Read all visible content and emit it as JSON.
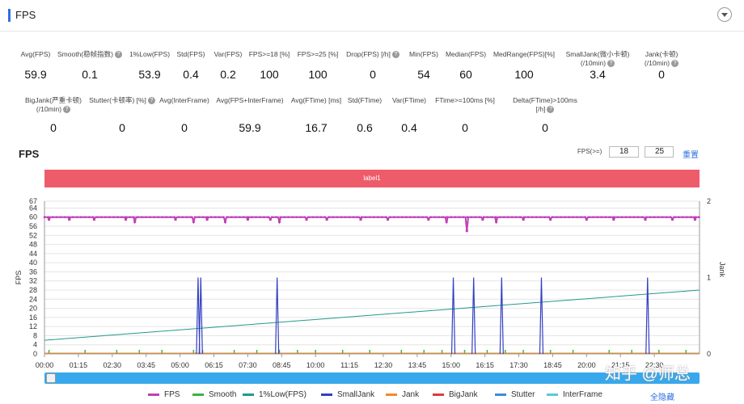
{
  "header": {
    "title": "FPS"
  },
  "stats_row1": [
    {
      "label": "Avg(FPS)",
      "value": "59.9",
      "help": false
    },
    {
      "label": "Smooth(稳帧指数)",
      "value": "0.1",
      "help": true
    },
    {
      "label": "1%Low(FPS)",
      "value": "53.9",
      "help": false
    },
    {
      "label": "Std(FPS)",
      "value": "0.4",
      "help": false
    },
    {
      "label": "Var(FPS)",
      "value": "0.2",
      "help": false
    },
    {
      "label": "FPS>=18 [%]",
      "value": "100",
      "help": false
    },
    {
      "label": "FPS>=25 [%]",
      "value": "100",
      "help": false
    },
    {
      "label": "Drop(FPS) [/h]",
      "value": "0",
      "help": true
    },
    {
      "label": "Min(FPS)",
      "value": "54",
      "help": false
    },
    {
      "label": "Median(FPS)",
      "value": "60",
      "help": false
    },
    {
      "label": "MedRange(FPS)[%]",
      "value": "100",
      "help": false
    },
    {
      "label": "SmallJank(微小卡顿)",
      "label2": "(/10min)",
      "value": "3.4",
      "help": true
    },
    {
      "label": "Jank(卡顿)",
      "label2": "(/10min)",
      "value": "0",
      "help": true
    }
  ],
  "stats_row2": [
    {
      "label": "BigJank(严重卡顿)",
      "label2": "(/10min)",
      "value": "0",
      "help": true
    },
    {
      "label": "Stutter(卡顿率) [%]",
      "value": "0",
      "help": true
    },
    {
      "label": "Avg(InterFrame)",
      "value": "0",
      "help": false
    },
    {
      "label": "Avg(FPS+InterFrame)",
      "value": "59.9",
      "help": false
    },
    {
      "label": "Avg(FTime) [ms]",
      "value": "16.7",
      "help": false
    },
    {
      "label": "Std(FTime)",
      "value": "0.6",
      "help": false
    },
    {
      "label": "Var(FTime)",
      "value": "0.4",
      "help": false
    },
    {
      "label": "FTime>=100ms [%]",
      "value": "0",
      "help": false
    },
    {
      "label": "Delta(FTime)>100ms [/h]",
      "value": "0",
      "help": true
    }
  ],
  "chart_header": {
    "title": "FPS",
    "threshold_label": "FPS(>=)",
    "threshold1": "18",
    "threshold2": "25",
    "reset_label": "重置"
  },
  "label_band": "label1",
  "legend": {
    "items": [
      {
        "name": "FPS",
        "color": "#c23fb7"
      },
      {
        "name": "Smooth",
        "color": "#3cb43c"
      },
      {
        "name": "1%Low(FPS)",
        "color": "#229a8c"
      },
      {
        "name": "SmallJank",
        "color": "#3340c0"
      },
      {
        "name": "Jank",
        "color": "#f08c2c"
      },
      {
        "name": "BigJank",
        "color": "#e03a3a"
      },
      {
        "name": "Stutter",
        "color": "#3c8cdc"
      },
      {
        "name": "InterFrame",
        "color": "#5cc8d8"
      }
    ],
    "hide_all_label": "全隐藏"
  },
  "watermark": "知乎 @师总",
  "chart_data": {
    "type": "line",
    "x_ticks": [
      "00:00",
      "01:15",
      "02:30",
      "03:45",
      "05:00",
      "06:15",
      "07:30",
      "08:45",
      "10:00",
      "11:15",
      "12:30",
      "13:45",
      "15:00",
      "16:15",
      "17:30",
      "18:45",
      "20:00",
      "21:15",
      "22:30"
    ],
    "x_range_seconds": [
      0,
      1450
    ],
    "ylabel": "FPS",
    "y2label": "Jank",
    "ylim": [
      0,
      67
    ],
    "y_ticks": [
      0,
      4,
      8,
      12,
      16,
      20,
      24,
      28,
      32,
      36,
      40,
      44,
      48,
      52,
      56,
      60,
      64,
      67
    ],
    "y2lim": [
      0,
      2
    ],
    "y2_ticks": [
      0,
      1,
      2
    ],
    "series": [
      {
        "name": "FPS",
        "baseline": 60,
        "dips_seconds": [
          [
            10,
            59
          ],
          [
            55,
            59
          ],
          [
            110,
            59
          ],
          [
            180,
            59
          ],
          [
            200,
            58
          ],
          [
            290,
            59
          ],
          [
            330,
            58
          ],
          [
            360,
            59
          ],
          [
            400,
            58
          ],
          [
            450,
            59
          ],
          [
            500,
            59
          ],
          [
            520,
            58
          ],
          [
            580,
            59
          ],
          [
            625,
            59
          ],
          [
            700,
            59
          ],
          [
            760,
            59
          ],
          [
            850,
            59
          ],
          [
            890,
            58
          ],
          [
            935,
            54
          ],
          [
            970,
            59
          ],
          [
            1000,
            58
          ],
          [
            1060,
            59
          ],
          [
            1120,
            59
          ],
          [
            1200,
            59
          ],
          [
            1260,
            59
          ],
          [
            1330,
            59
          ],
          [
            1390,
            59
          ],
          [
            1440,
            59
          ]
        ]
      },
      {
        "name": "1%Low(FPS)",
        "start": 6,
        "end": 28
      },
      {
        "name": "SmallJank",
        "spikes_seconds": [
          340,
          346,
          515,
          905,
          950,
          1012,
          1100,
          1335
        ],
        "value": 1
      },
      {
        "name": "Smooth",
        "baseline": 0,
        "ticks_seconds": [
          10,
          90,
          160,
          210,
          260,
          330,
          350,
          420,
          470,
          520,
          560,
          600,
          660,
          720,
          790,
          840,
          880,
          930,
          980,
          1020,
          1060,
          1120,
          1170,
          1250,
          1300,
          1360,
          1420
        ]
      },
      {
        "name": "Jank",
        "baseline": 0
      }
    ]
  }
}
